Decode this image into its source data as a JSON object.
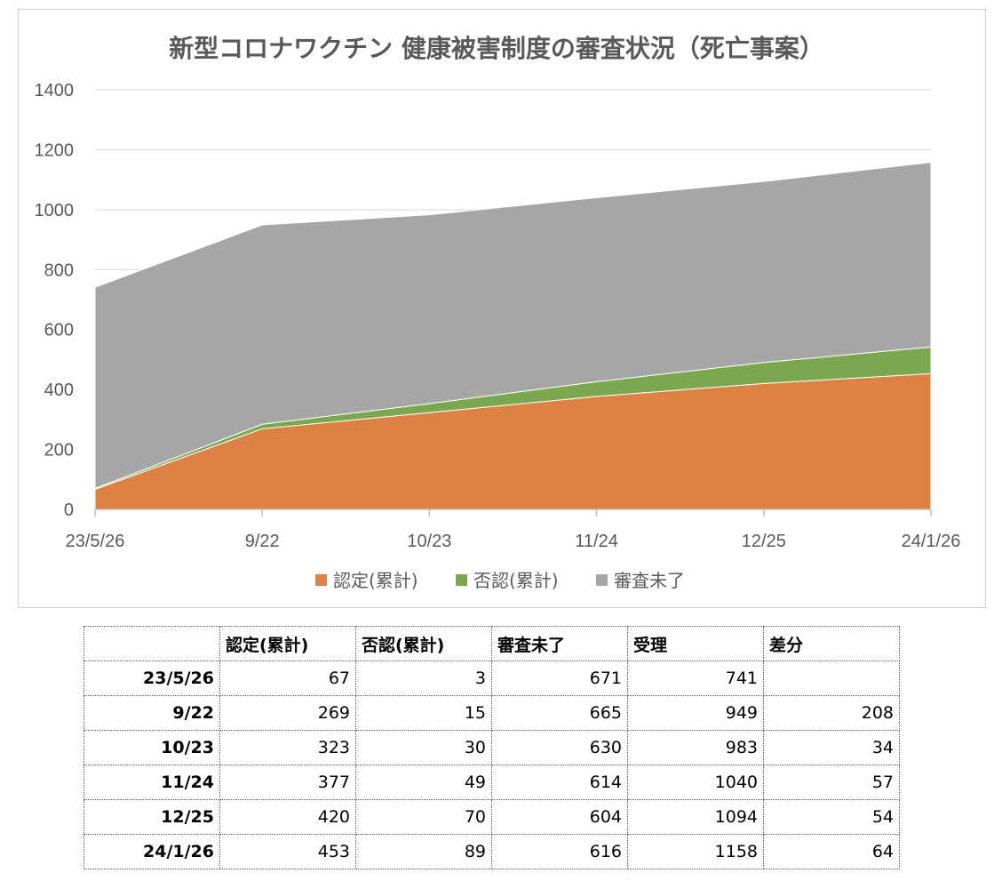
{
  "chart_data": {
    "type": "area",
    "stacked": true,
    "title": "新型コロナワクチン 健康被害制度の審査状況（死亡事案）",
    "categories": [
      "23/5/26",
      "9/22",
      "10/23",
      "11/24",
      "12/25",
      "24/1/26"
    ],
    "series": [
      {
        "name": "認定(累計)",
        "color": "#dd8244",
        "values": [
          67,
          269,
          323,
          377,
          420,
          453
        ]
      },
      {
        "name": "否認(累計)",
        "color": "#7ba84f",
        "values": [
          3,
          15,
          30,
          49,
          70,
          89
        ]
      },
      {
        "name": "審査未了",
        "color": "#a6a6a6",
        "values": [
          671,
          665,
          630,
          614,
          604,
          616
        ]
      }
    ],
    "yticks": [
      "0",
      "200",
      "400",
      "600",
      "800",
      "1000",
      "1200",
      "1400"
    ],
    "ylim": [
      0,
      1400
    ],
    "grid": true,
    "legend_position": "bottom"
  },
  "table": {
    "headers": [
      "",
      "認定(累計)",
      "否認(累計)",
      "審査未了",
      "受理",
      "差分"
    ],
    "rows": [
      [
        "23/5/26",
        "67",
        "3",
        "671",
        "741",
        ""
      ],
      [
        "9/22",
        "269",
        "15",
        "665",
        "949",
        "208"
      ],
      [
        "10/23",
        "323",
        "30",
        "630",
        "983",
        "34"
      ],
      [
        "11/24",
        "377",
        "49",
        "614",
        "1040",
        "57"
      ],
      [
        "12/25",
        "420",
        "70",
        "604",
        "1094",
        "54"
      ],
      [
        "24/1/26",
        "453",
        "89",
        "616",
        "1158",
        "64"
      ]
    ]
  }
}
